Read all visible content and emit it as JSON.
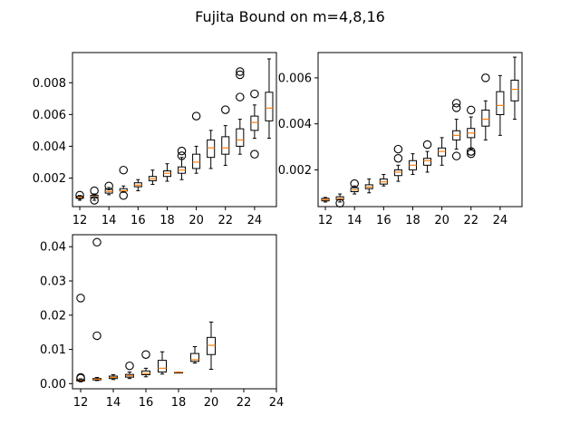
{
  "figure": {
    "title": "Fujita Bound on m=4,8,16"
  },
  "chart_data": [
    {
      "type": "boxplot",
      "panel": "top-left",
      "title": "",
      "xlabel": "",
      "ylabel": "",
      "xlim": [
        11.5,
        25.5
      ],
      "ylim": [
        0.0002,
        0.0099
      ],
      "xticks": [
        12,
        14,
        16,
        18,
        20,
        22,
        24
      ],
      "yticks": [
        0.002,
        0.004,
        0.006,
        0.008
      ],
      "ytick_labels": [
        "0.002",
        "0.004",
        "0.006",
        "0.008"
      ],
      "boxes": [
        {
          "x": 12,
          "whislo": 0.0006,
          "q1": 0.00072,
          "med": 0.00079,
          "q3": 0.00086,
          "whishi": 0.0009,
          "fliers": [
            0.00092
          ]
        },
        {
          "x": 13,
          "whislo": 0.0006,
          "q1": 0.00075,
          "med": 0.00083,
          "q3": 0.00092,
          "whishi": 0.001,
          "fliers": [
            0.0006,
            0.0012
          ]
        },
        {
          "x": 14,
          "whislo": 0.00095,
          "q1": 0.00105,
          "med": 0.00115,
          "q3": 0.0013,
          "whishi": 0.0014,
          "fliers": [
            0.0015
          ]
        },
        {
          "x": 15,
          "whislo": 0.0011,
          "q1": 0.00118,
          "med": 0.0012,
          "q3": 0.00133,
          "whishi": 0.0015,
          "fliers": [
            0.0025,
            0.0009
          ]
        },
        {
          "x": 16,
          "whislo": 0.0012,
          "q1": 0.00145,
          "med": 0.00155,
          "q3": 0.0017,
          "whishi": 0.0019,
          "fliers": []
        },
        {
          "x": 17,
          "whislo": 0.0016,
          "q1": 0.00183,
          "med": 0.00195,
          "q3": 0.0021,
          "whishi": 0.0025,
          "fliers": []
        },
        {
          "x": 18,
          "whislo": 0.0018,
          "q1": 0.0021,
          "med": 0.0023,
          "q3": 0.00245,
          "whishi": 0.0029,
          "fliers": []
        },
        {
          "x": 19,
          "whislo": 0.0019,
          "q1": 0.0023,
          "med": 0.0025,
          "q3": 0.0027,
          "whishi": 0.0033,
          "fliers": [
            0.0034,
            0.0037
          ]
        },
        {
          "x": 20,
          "whislo": 0.0023,
          "q1": 0.0026,
          "med": 0.003,
          "q3": 0.0035,
          "whishi": 0.004,
          "fliers": [
            0.0059
          ]
        },
        {
          "x": 21,
          "whislo": 0.0026,
          "q1": 0.0033,
          "med": 0.0039,
          "q3": 0.0044,
          "whishi": 0.005,
          "fliers": []
        },
        {
          "x": 22,
          "whislo": 0.0028,
          "q1": 0.0035,
          "med": 0.0039,
          "q3": 0.0046,
          "whishi": 0.0053,
          "fliers": [
            0.0063
          ]
        },
        {
          "x": 23,
          "whislo": 0.0035,
          "q1": 0.004,
          "med": 0.0044,
          "q3": 0.0051,
          "whishi": 0.0057,
          "fliers": [
            0.0071,
            0.0085,
            0.0087
          ]
        },
        {
          "x": 24,
          "whislo": 0.0045,
          "q1": 0.005,
          "med": 0.0055,
          "q3": 0.0059,
          "whishi": 0.0066,
          "fliers": [
            0.0073,
            0.0035
          ]
        },
        {
          "x": 25,
          "whislo": 0.0045,
          "q1": 0.0056,
          "med": 0.0064,
          "q3": 0.0074,
          "whishi": 0.0095,
          "fliers": []
        }
      ]
    },
    {
      "type": "boxplot",
      "panel": "top-right",
      "title": "",
      "xlabel": "",
      "ylabel": "",
      "xlim": [
        11.5,
        25.5
      ],
      "ylim": [
        0.0004,
        0.0071
      ],
      "xticks": [
        12,
        14,
        16,
        18,
        20,
        22,
        24
      ],
      "yticks": [
        0.002,
        0.004,
        0.006
      ],
      "ytick_labels": [
        "0.002",
        "0.004",
        "0.006"
      ],
      "boxes": [
        {
          "x": 12,
          "whislo": 0.0006,
          "q1": 0.00065,
          "med": 0.0007,
          "q3": 0.00076,
          "whishi": 0.0008,
          "fliers": []
        },
        {
          "x": 13,
          "whislo": 0.0006,
          "q1": 0.0007,
          "med": 0.00075,
          "q3": 0.00083,
          "whishi": 0.00095,
          "fliers": [
            0.00055
          ]
        },
        {
          "x": 14,
          "whislo": 0.00095,
          "q1": 0.00105,
          "med": 0.00113,
          "q3": 0.00122,
          "whishi": 0.0013,
          "fliers": [
            0.0014
          ]
        },
        {
          "x": 15,
          "whislo": 0.001,
          "q1": 0.00118,
          "med": 0.00125,
          "q3": 0.00135,
          "whishi": 0.0016,
          "fliers": []
        },
        {
          "x": 16,
          "whislo": 0.0013,
          "q1": 0.00138,
          "med": 0.00148,
          "q3": 0.0016,
          "whishi": 0.0018,
          "fliers": []
        },
        {
          "x": 17,
          "whislo": 0.0015,
          "q1": 0.00175,
          "med": 0.0019,
          "q3": 0.002,
          "whishi": 0.0022,
          "fliers": [
            0.0025,
            0.0029
          ]
        },
        {
          "x": 18,
          "whislo": 0.0018,
          "q1": 0.002,
          "med": 0.0022,
          "q3": 0.0024,
          "whishi": 0.0027,
          "fliers": []
        },
        {
          "x": 19,
          "whislo": 0.0019,
          "q1": 0.0022,
          "med": 0.0024,
          "q3": 0.0025,
          "whishi": 0.0028,
          "fliers": [
            0.0031
          ]
        },
        {
          "x": 20,
          "whislo": 0.0022,
          "q1": 0.0026,
          "med": 0.0028,
          "q3": 0.00295,
          "whishi": 0.0034,
          "fliers": []
        },
        {
          "x": 21,
          "whislo": 0.0029,
          "q1": 0.0033,
          "med": 0.0035,
          "q3": 0.0037,
          "whishi": 0.0042,
          "fliers": [
            0.0047,
            0.0049,
            0.0026
          ]
        },
        {
          "x": 22,
          "whislo": 0.0029,
          "q1": 0.0034,
          "med": 0.0036,
          "q3": 0.0038,
          "whishi": 0.0043,
          "fliers": [
            0.0046,
            0.0028,
            0.0027
          ]
        },
        {
          "x": 23,
          "whislo": 0.0033,
          "q1": 0.0039,
          "med": 0.0042,
          "q3": 0.0046,
          "whishi": 0.005,
          "fliers": [
            0.006
          ]
        },
        {
          "x": 24,
          "whislo": 0.0035,
          "q1": 0.0044,
          "med": 0.0048,
          "q3": 0.0054,
          "whishi": 0.0061,
          "fliers": []
        },
        {
          "x": 25,
          "whislo": 0.0042,
          "q1": 0.005,
          "med": 0.0055,
          "q3": 0.0059,
          "whishi": 0.0069,
          "fliers": []
        }
      ]
    },
    {
      "type": "boxplot",
      "panel": "bottom-left",
      "title": "",
      "xlabel": "",
      "ylabel": "",
      "xlim": [
        11.5,
        24
      ],
      "ylim": [
        -0.0015,
        0.0435
      ],
      "xticks": [
        12,
        14,
        16,
        18,
        20,
        22,
        24
      ],
      "yticks": [
        0.0,
        0.01,
        0.02,
        0.03,
        0.04
      ],
      "ytick_labels": [
        "0.00",
        "0.01",
        "0.02",
        "0.03",
        "0.04"
      ],
      "boxes": [
        {
          "x": 12,
          "whislo": 0.0006,
          "q1": 0.0008,
          "med": 0.0009,
          "q3": 0.0011,
          "whishi": 0.0014,
          "fliers": [
            0.025,
            0.0018,
            0.0016
          ]
        },
        {
          "x": 13,
          "whislo": 0.0009,
          "q1": 0.0011,
          "med": 0.0013,
          "q3": 0.0015,
          "whishi": 0.0018,
          "fliers": [
            0.0413,
            0.014
          ]
        },
        {
          "x": 14,
          "whislo": 0.0012,
          "q1": 0.0015,
          "med": 0.0018,
          "q3": 0.0022,
          "whishi": 0.0026,
          "fliers": []
        },
        {
          "x": 15,
          "whislo": 0.0015,
          "q1": 0.0019,
          "med": 0.0023,
          "q3": 0.0027,
          "whishi": 0.0034,
          "fliers": [
            0.0052
          ]
        },
        {
          "x": 16,
          "whislo": 0.002,
          "q1": 0.0026,
          "med": 0.003,
          "q3": 0.0037,
          "whishi": 0.0045,
          "fliers": [
            0.0085
          ]
        },
        {
          "x": 17,
          "whislo": 0.0028,
          "q1": 0.0034,
          "med": 0.0045,
          "q3": 0.0068,
          "whishi": 0.0093,
          "fliers": []
        },
        {
          "x": 18,
          "whislo": 0.0032,
          "q1": 0.0032,
          "med": 0.0033,
          "q3": 0.0033,
          "whishi": 0.0034,
          "fliers": []
        },
        {
          "x": 19,
          "whislo": 0.006,
          "q1": 0.0065,
          "med": 0.007,
          "q3": 0.0088,
          "whishi": 0.0108,
          "fliers": []
        },
        {
          "x": 20,
          "whislo": 0.0042,
          "q1": 0.0085,
          "med": 0.0112,
          "q3": 0.0135,
          "whishi": 0.018,
          "fliers": []
        }
      ]
    }
  ]
}
